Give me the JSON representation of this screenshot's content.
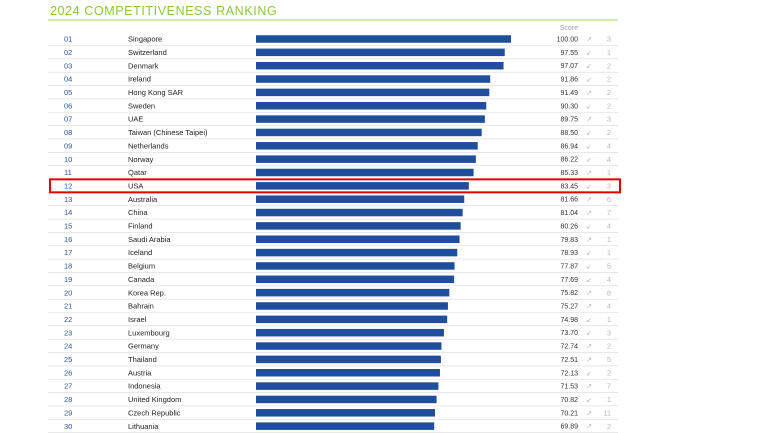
{
  "chart_data": {
    "type": "bar",
    "orientation": "horizontal",
    "title": "2024 COMPETITIVENESS RANKING",
    "score_header": "Score",
    "bar_color": "#1f4e9c",
    "title_color": "#8cc63f",
    "highlight_color": "#e00000",
    "highlight_rank": "12",
    "xlim": [
      0,
      100
    ],
    "rows": [
      {
        "rank": "01",
        "country": "Singapore",
        "score": "100.00",
        "change": "3",
        "arrow": "up"
      },
      {
        "rank": "02",
        "country": "Switzerland",
        "score": "97.55",
        "change": "1",
        "arrow": "down"
      },
      {
        "rank": "03",
        "country": "Denmark",
        "score": "97.07",
        "change": "2",
        "arrow": "down"
      },
      {
        "rank": "04",
        "country": "Ireland",
        "score": "91.86",
        "change": "2",
        "arrow": "down"
      },
      {
        "rank": "05",
        "country": "Hong Kong SAR",
        "score": "91.49",
        "change": "2",
        "arrow": "up"
      },
      {
        "rank": "06",
        "country": "Sweden",
        "score": "90.30",
        "change": "2",
        "arrow": "down"
      },
      {
        "rank": "07",
        "country": "UAE",
        "score": "89.75",
        "change": "3",
        "arrow": "up"
      },
      {
        "rank": "08",
        "country": "Taiwan (Chinese Taipei)",
        "score": "88.50",
        "change": "2",
        "arrow": "down"
      },
      {
        "rank": "09",
        "country": "Netherlands",
        "score": "86.94",
        "change": "4",
        "arrow": "down"
      },
      {
        "rank": "10",
        "country": "Norway",
        "score": "86.22",
        "change": "4",
        "arrow": "down"
      },
      {
        "rank": "11",
        "country": "Qatar",
        "score": "85.33",
        "change": "1",
        "arrow": "up"
      },
      {
        "rank": "12",
        "country": "USA",
        "score": "83.45",
        "change": "3",
        "arrow": "down"
      },
      {
        "rank": "13",
        "country": "Australia",
        "score": "81.66",
        "change": "6",
        "arrow": "up"
      },
      {
        "rank": "14",
        "country": "China",
        "score": "81.04",
        "change": "7",
        "arrow": "up"
      },
      {
        "rank": "15",
        "country": "Finland",
        "score": "80.26",
        "change": "4",
        "arrow": "down"
      },
      {
        "rank": "16",
        "country": "Saudi Arabia",
        "score": "79.83",
        "change": "1",
        "arrow": "up"
      },
      {
        "rank": "17",
        "country": "Iceland",
        "score": "78.93",
        "change": "1",
        "arrow": "down"
      },
      {
        "rank": "18",
        "country": "Belgium",
        "score": "77.87",
        "change": "5",
        "arrow": "down"
      },
      {
        "rank": "19",
        "country": "Canada",
        "score": "77.69",
        "change": "4",
        "arrow": "down"
      },
      {
        "rank": "20",
        "country": "Korea Rep.",
        "score": "75.82",
        "change": "8",
        "arrow": "up"
      },
      {
        "rank": "21",
        "country": "Bahrain",
        "score": "75.27",
        "change": "4",
        "arrow": "up"
      },
      {
        "rank": "22",
        "country": "Israel",
        "score": "74.98",
        "change": "1",
        "arrow": "down"
      },
      {
        "rank": "23",
        "country": "Luxembourg",
        "score": "73.70",
        "change": "3",
        "arrow": "down"
      },
      {
        "rank": "24",
        "country": "Germany",
        "score": "72.74",
        "change": "2",
        "arrow": "up"
      },
      {
        "rank": "25",
        "country": "Thailand",
        "score": "72.51",
        "change": "5",
        "arrow": "up"
      },
      {
        "rank": "26",
        "country": "Austria",
        "score": "72.13",
        "change": "2",
        "arrow": "down"
      },
      {
        "rank": "27",
        "country": "Indonesia",
        "score": "71.53",
        "change": "7",
        "arrow": "up"
      },
      {
        "rank": "28",
        "country": "United Kingdom",
        "score": "70.82",
        "change": "1",
        "arrow": "down"
      },
      {
        "rank": "29",
        "country": "Czech Republic",
        "score": "70.21",
        "change": "11",
        "arrow": "up"
      },
      {
        "rank": "30",
        "country": "Lithuania",
        "score": "69.89",
        "change": "2",
        "arrow": "up"
      }
    ]
  }
}
